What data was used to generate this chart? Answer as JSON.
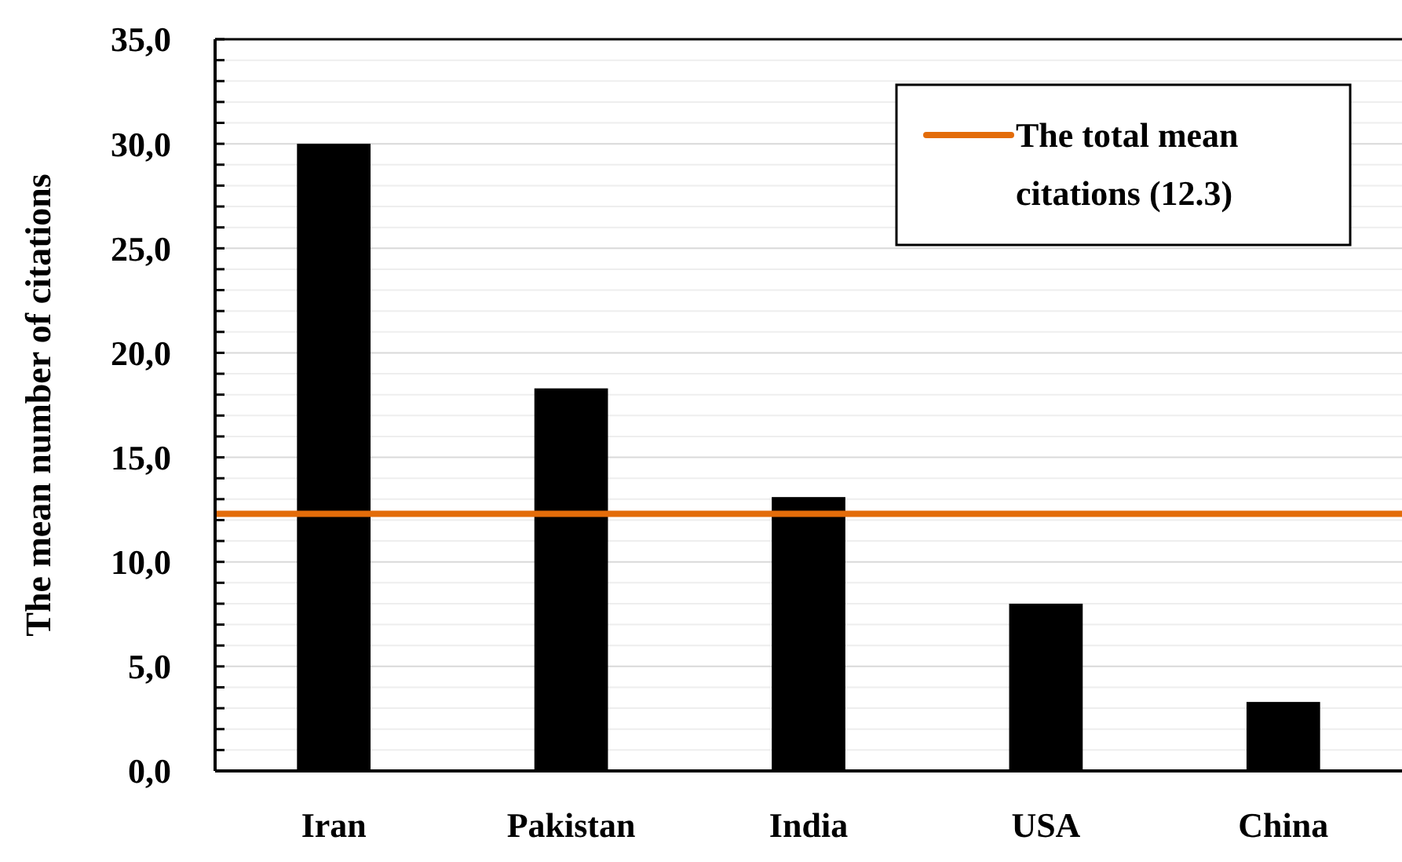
{
  "chart_data": {
    "type": "bar",
    "ylabel": "The mean number of citations",
    "categories": [
      "Iran",
      "Pakistan",
      "India",
      "USA",
      "China"
    ],
    "values": [
      30.0,
      18.3,
      13.1,
      8.0,
      3.3
    ],
    "color": "#000000",
    "ylim": [
      0,
      35
    ],
    "yticks": [
      {
        "value": 0,
        "label": "0,0"
      },
      {
        "value": 1,
        "label": null
      },
      {
        "value": 2,
        "label": null
      },
      {
        "value": 3,
        "label": null
      },
      {
        "value": 4,
        "label": null
      },
      {
        "value": 5,
        "label": "5,0"
      },
      {
        "value": 6,
        "label": null
      },
      {
        "value": 7,
        "label": null
      },
      {
        "value": 8,
        "label": null
      },
      {
        "value": 9,
        "label": null
      },
      {
        "value": 10,
        "label": "10,0"
      },
      {
        "value": 11,
        "label": null
      },
      {
        "value": 12,
        "label": null
      },
      {
        "value": 13,
        "label": null
      },
      {
        "value": 14,
        "label": null
      },
      {
        "value": 15,
        "label": "15,0"
      },
      {
        "value": 16,
        "label": null
      },
      {
        "value": 17,
        "label": null
      },
      {
        "value": 18,
        "label": null
      },
      {
        "value": 19,
        "label": null
      },
      {
        "value": 20,
        "label": "20,0"
      },
      {
        "value": 21,
        "label": null
      },
      {
        "value": 22,
        "label": null
      },
      {
        "value": 23,
        "label": null
      },
      {
        "value": 24,
        "label": null
      },
      {
        "value": 25,
        "label": "25,0"
      },
      {
        "value": 26,
        "label": null
      },
      {
        "value": 27,
        "label": null
      },
      {
        "value": 28,
        "label": null
      },
      {
        "value": 29,
        "label": null
      },
      {
        "value": 30,
        "label": "30,0"
      },
      {
        "value": 31,
        "label": null
      },
      {
        "value": 32,
        "label": null
      },
      {
        "value": 33,
        "label": null
      },
      {
        "value": 34,
        "label": null
      },
      {
        "value": 35,
        "label": "35,0"
      }
    ],
    "grid": "y",
    "ref_lines": [
      {
        "axis": "y",
        "value": 12.3,
        "label": "The total mean citations (12.3)",
        "color": "#e36c0a"
      }
    ],
    "legend": "top right"
  }
}
